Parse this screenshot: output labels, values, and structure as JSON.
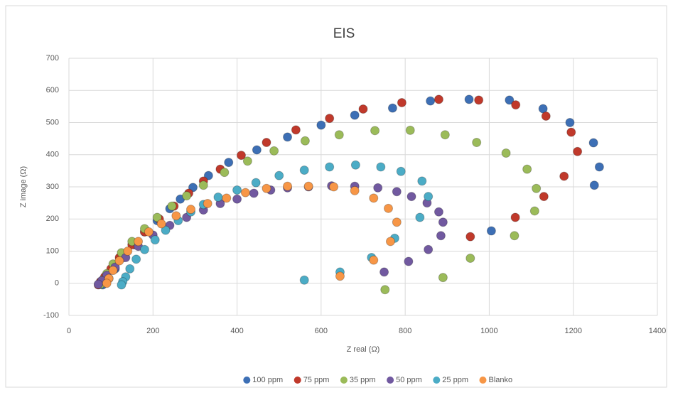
{
  "chart_data": {
    "type": "scatter",
    "title": "EIS",
    "x_label": "Z real (Ω)",
    "y_label": "Z image (Ω)",
    "xlim": [
      0,
      1400
    ],
    "xticks": [
      0,
      200,
      400,
      600,
      800,
      1000,
      1200,
      1400
    ],
    "ylim": [
      -100,
      700
    ],
    "yticks": [
      -100,
      0,
      100,
      200,
      300,
      400,
      500,
      600,
      700
    ],
    "grid": true,
    "legend": "bottom",
    "series": [
      {
        "name": "100 ppm",
        "color": "#3d6fb5",
        "x": [
          1005,
          1250,
          1262,
          1248,
          1192,
          1128,
          1048,
          952,
          860,
          770,
          680,
          600,
          520,
          447,
          380,
          332,
          295,
          265,
          240,
          210,
          180,
          155,
          130,
          110,
          95,
          85,
          80
        ],
        "values": [
          163,
          305,
          362,
          437,
          500,
          543,
          570,
          572,
          567,
          545,
          523,
          492,
          455,
          415,
          376,
          335,
          298,
          262,
          232,
          195,
          160,
          120,
          80,
          45,
          15,
          2,
          -5
        ]
      },
      {
        "name": "75 ppm",
        "color": "#c0392b",
        "x": [
          955,
          1062,
          1130,
          1178,
          1210,
          1195,
          1135,
          1063,
          975,
          880,
          792,
          700,
          620,
          540,
          470,
          410,
          360,
          320,
          285,
          250,
          215,
          180,
          150,
          120,
          100,
          85,
          75,
          70
        ],
        "values": [
          145,
          205,
          270,
          333,
          410,
          470,
          520,
          555,
          570,
          572,
          562,
          542,
          513,
          477,
          438,
          398,
          355,
          318,
          280,
          240,
          200,
          160,
          120,
          80,
          45,
          20,
          5,
          -5
        ]
      },
      {
        "name": "35 ppm",
        "color": "#9bbb59",
        "x": [
          752,
          890,
          955,
          1060,
          1108,
          1112,
          1090,
          1040,
          970,
          895,
          812,
          728,
          643,
          562,
          488,
          425,
          370,
          320,
          280,
          245,
          210,
          180,
          150,
          125,
          105,
          90,
          80,
          75
        ],
        "values": [
          -20,
          18,
          78,
          148,
          225,
          295,
          355,
          405,
          438,
          462,
          476,
          475,
          462,
          443,
          412,
          380,
          345,
          305,
          272,
          240,
          205,
          170,
          130,
          95,
          60,
          30,
          10,
          -3
        ]
      },
      {
        "name": "50 ppm",
        "color": "#7159a0",
        "x": [
          750,
          808,
          855,
          885,
          890,
          880,
          852,
          815,
          780,
          735,
          680,
          625,
          570,
          520,
          480,
          440,
          400,
          360,
          320,
          280,
          240,
          200,
          165,
          135,
          110,
          90,
          78,
          70
        ],
        "values": [
          35,
          68,
          105,
          148,
          190,
          222,
          250,
          270,
          285,
          297,
          302,
          303,
          300,
          297,
          290,
          280,
          262,
          248,
          228,
          205,
          180,
          150,
          115,
          80,
          50,
          25,
          8,
          -3
        ]
      },
      {
        "name": "25 ppm",
        "color": "#4bacc6",
        "x": [
          560,
          645,
          720,
          775,
          835,
          855,
          840,
          790,
          742,
          682,
          620,
          560,
          500,
          445,
          400,
          355,
          320,
          290,
          260,
          230,
          205,
          180,
          160,
          145,
          135,
          128,
          125
        ],
        "values": [
          10,
          35,
          80,
          140,
          205,
          270,
          318,
          348,
          362,
          368,
          362,
          352,
          335,
          313,
          290,
          268,
          245,
          222,
          195,
          165,
          135,
          105,
          75,
          45,
          20,
          5,
          -5
        ]
      },
      {
        "name": "Blanko",
        "color": "#f79646",
        "x": [
          645,
          725,
          765,
          780,
          760,
          725,
          680,
          630,
          570,
          520,
          470,
          420,
          375,
          330,
          290,
          255,
          220,
          190,
          165,
          140,
          120,
          105,
          95,
          90
        ],
        "values": [
          22,
          72,
          130,
          190,
          233,
          265,
          288,
          300,
          302,
          302,
          295,
          282,
          265,
          248,
          230,
          210,
          185,
          160,
          130,
          100,
          70,
          40,
          15,
          0
        ]
      }
    ]
  }
}
